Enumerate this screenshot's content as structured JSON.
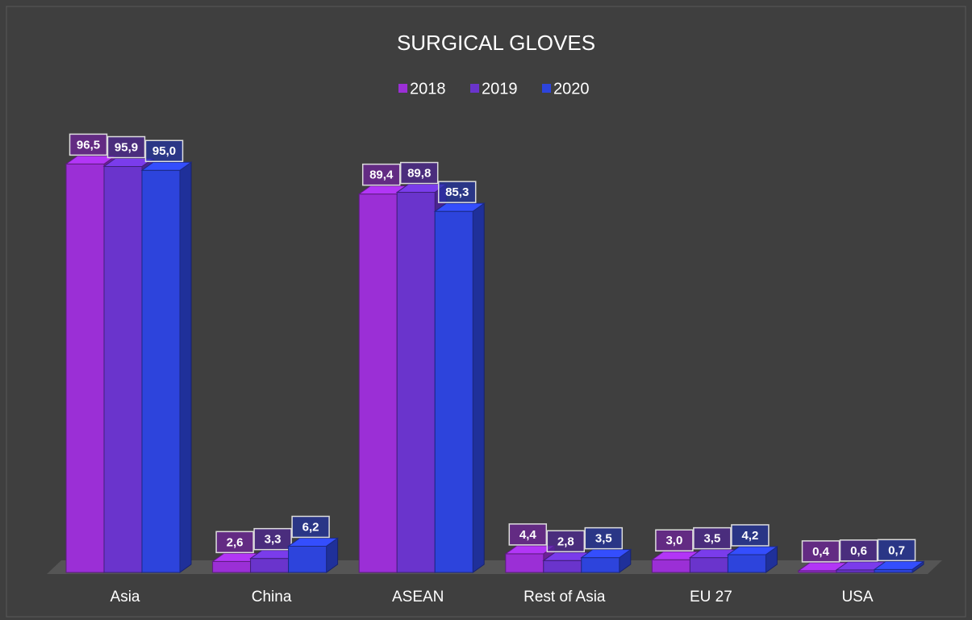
{
  "chart_data": {
    "type": "bar3d",
    "title": "SURGICAL GLOVES",
    "categories": [
      "Asia",
      "China",
      "ASEAN",
      "Rest of Asia",
      "EU 27",
      "USA"
    ],
    "series": [
      {
        "name": "2018",
        "color": "#9b2fd6",
        "values": [
          96.5,
          2.6,
          89.4,
          4.4,
          3.0,
          0.4
        ],
        "value_labels": [
          "96,5",
          "2,6",
          "89,4",
          "4,4",
          "3,0",
          "0,4"
        ]
      },
      {
        "name": "2019",
        "color": "#6a34cc",
        "values": [
          95.9,
          3.3,
          89.8,
          2.8,
          3.5,
          0.6
        ],
        "value_labels": [
          "95,9",
          "3,3",
          "89,8",
          "2,8",
          "3,5",
          "0,6"
        ]
      },
      {
        "name": "2020",
        "color": "#2d44dc",
        "values": [
          95.0,
          6.2,
          85.3,
          3.5,
          4.2,
          0.7
        ],
        "value_labels": [
          "95,0",
          "6,2",
          "85,3",
          "3,5",
          "4,2",
          "0,7"
        ]
      }
    ],
    "legend": "top"
  }
}
